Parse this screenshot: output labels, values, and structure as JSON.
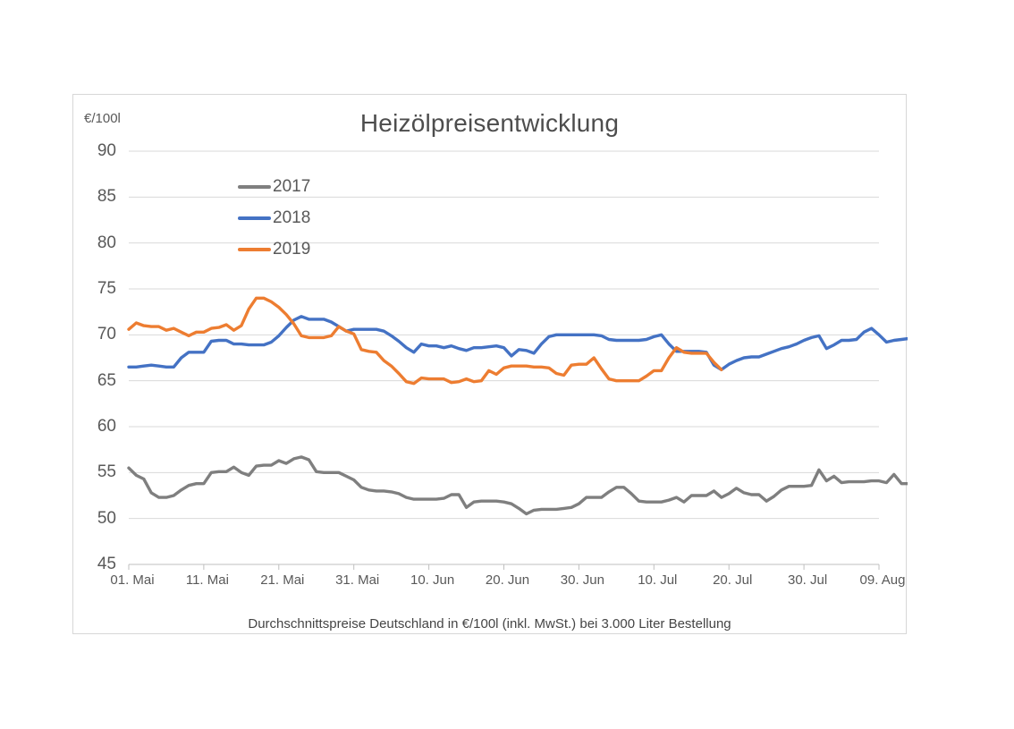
{
  "chart_data": {
    "type": "line",
    "title": "Heizölpreisentwicklung",
    "unit_label": "€/100l",
    "caption": "Durchschnittspreise Deutschland in €/100l (inkl. MwSt.) bei 3.000 Liter Bestellung",
    "xlabel": "",
    "ylabel": "€/100l",
    "ylim": [
      45,
      90
    ],
    "xlim_days": [
      0,
      108
    ],
    "y_ticks": [
      45,
      50,
      55,
      60,
      65,
      70,
      75,
      80,
      85,
      90
    ],
    "x_ticks": [
      {
        "day": 0,
        "label": "01. Mai"
      },
      {
        "day": 10,
        "label": "11. Mai"
      },
      {
        "day": 20,
        "label": "21. Mai"
      },
      {
        "day": 30,
        "label": "31. Mai"
      },
      {
        "day": 40,
        "label": "10. Jun"
      },
      {
        "day": 50,
        "label": "20. Jun"
      },
      {
        "day": 60,
        "label": "30. Jun"
      },
      {
        "day": 70,
        "label": "10. Jul"
      },
      {
        "day": 80,
        "label": "20. Jul"
      },
      {
        "day": 90,
        "label": "30. Jul"
      },
      {
        "day": 100,
        "label": "09. Aug"
      }
    ],
    "grid": true,
    "legend_position": "upper-left-inside",
    "colors": {
      "gridline": "#d9d9d9",
      "axis_line": "#bfbfbf",
      "text": "#595959"
    },
    "series": [
      {
        "name": "2017",
        "color": "#7f7f7f",
        "start_day": 0,
        "values": [
          55.5,
          54.7,
          54.3,
          52.8,
          52.3,
          52.3,
          52.5,
          53.1,
          53.6,
          53.8,
          53.8,
          55.0,
          55.1,
          55.1,
          55.6,
          55.0,
          54.7,
          55.7,
          55.8,
          55.8,
          56.3,
          56.0,
          56.5,
          56.7,
          56.4,
          55.1,
          55.0,
          55.0,
          55.0,
          54.6,
          54.2,
          53.4,
          53.1,
          53.0,
          53.0,
          52.9,
          52.7,
          52.3,
          52.1,
          52.1,
          52.1,
          52.1,
          52.2,
          52.6,
          52.6,
          51.2,
          51.8,
          51.9,
          51.9,
          51.9,
          51.8,
          51.6,
          51.1,
          50.5,
          50.9,
          51.0,
          51.0,
          51.0,
          51.1,
          51.2,
          51.6,
          52.3,
          52.3,
          52.3,
          52.9,
          53.4,
          53.4,
          52.7,
          51.9,
          51.8,
          51.8,
          51.8,
          52.0,
          52.3,
          51.8,
          52.5,
          52.5,
          52.5,
          53.0,
          52.3,
          52.7,
          53.3,
          52.8,
          52.6,
          52.6,
          51.9,
          52.4,
          53.1,
          53.5,
          53.5,
          53.5,
          53.6,
          55.3,
          54.1,
          54.6,
          53.9,
          54.0,
          54.0,
          54.0,
          54.1,
          54.1,
          53.9,
          54.8,
          53.8,
          53.8,
          53.8,
          53.7,
          53.3,
          53.2
        ]
      },
      {
        "name": "2018",
        "color": "#4472c4",
        "start_day": 0,
        "values": [
          66.5,
          66.5,
          66.6,
          66.7,
          66.6,
          66.5,
          66.5,
          67.5,
          68.1,
          68.1,
          68.1,
          69.3,
          69.4,
          69.4,
          69.0,
          69.0,
          68.9,
          68.9,
          68.9,
          69.2,
          69.9,
          70.8,
          71.6,
          72.0,
          71.7,
          71.7,
          71.7,
          71.4,
          70.9,
          70.4,
          70.6,
          70.6,
          70.6,
          70.6,
          70.4,
          69.9,
          69.3,
          68.6,
          68.1,
          69.0,
          68.8,
          68.8,
          68.6,
          68.8,
          68.5,
          68.3,
          68.6,
          68.6,
          68.7,
          68.8,
          68.6,
          67.7,
          68.4,
          68.3,
          68.0,
          69.0,
          69.8,
          70.0,
          70.0,
          70.0,
          70.0,
          70.0,
          70.0,
          69.9,
          69.5,
          69.4,
          69.4,
          69.4,
          69.4,
          69.5,
          69.8,
          70.0,
          69.0,
          68.2,
          68.2,
          68.2,
          68.2,
          68.1,
          66.7,
          66.2,
          66.8,
          67.2,
          67.5,
          67.6,
          67.6,
          67.9,
          68.2,
          68.5,
          68.7,
          69.0,
          69.4,
          69.7,
          69.9,
          68.5,
          68.9,
          69.4,
          69.4,
          69.5,
          70.3,
          70.7,
          70.0,
          69.2,
          69.4,
          69.5,
          69.6,
          70.8,
          71.0,
          70.5,
          70.1
        ]
      },
      {
        "name": "2019",
        "color": "#ed7d31",
        "start_day": 0,
        "values": [
          70.6,
          71.3,
          71.0,
          70.9,
          70.9,
          70.5,
          70.7,
          70.3,
          69.9,
          70.3,
          70.3,
          70.7,
          70.8,
          71.1,
          70.5,
          71.0,
          72.8,
          74.0,
          74.0,
          73.6,
          73.0,
          72.2,
          71.2,
          69.9,
          69.7,
          69.7,
          69.7,
          69.9,
          70.9,
          70.4,
          70.1,
          68.4,
          68.2,
          68.1,
          67.2,
          66.6,
          65.8,
          64.9,
          64.7,
          65.3,
          65.2,
          65.2,
          65.2,
          64.8,
          64.9,
          65.2,
          64.9,
          65.0,
          66.1,
          65.7,
          66.4,
          66.6,
          66.6,
          66.6,
          66.5,
          66.5,
          66.4,
          65.8,
          65.6,
          66.7,
          66.8,
          66.8,
          67.5,
          66.3,
          65.2,
          65.0,
          65.0,
          65.0,
          65.0,
          65.5,
          66.1,
          66.1,
          67.5,
          68.6,
          68.1,
          68.0,
          68.0,
          68.0,
          67.0,
          66.2
        ]
      }
    ]
  }
}
